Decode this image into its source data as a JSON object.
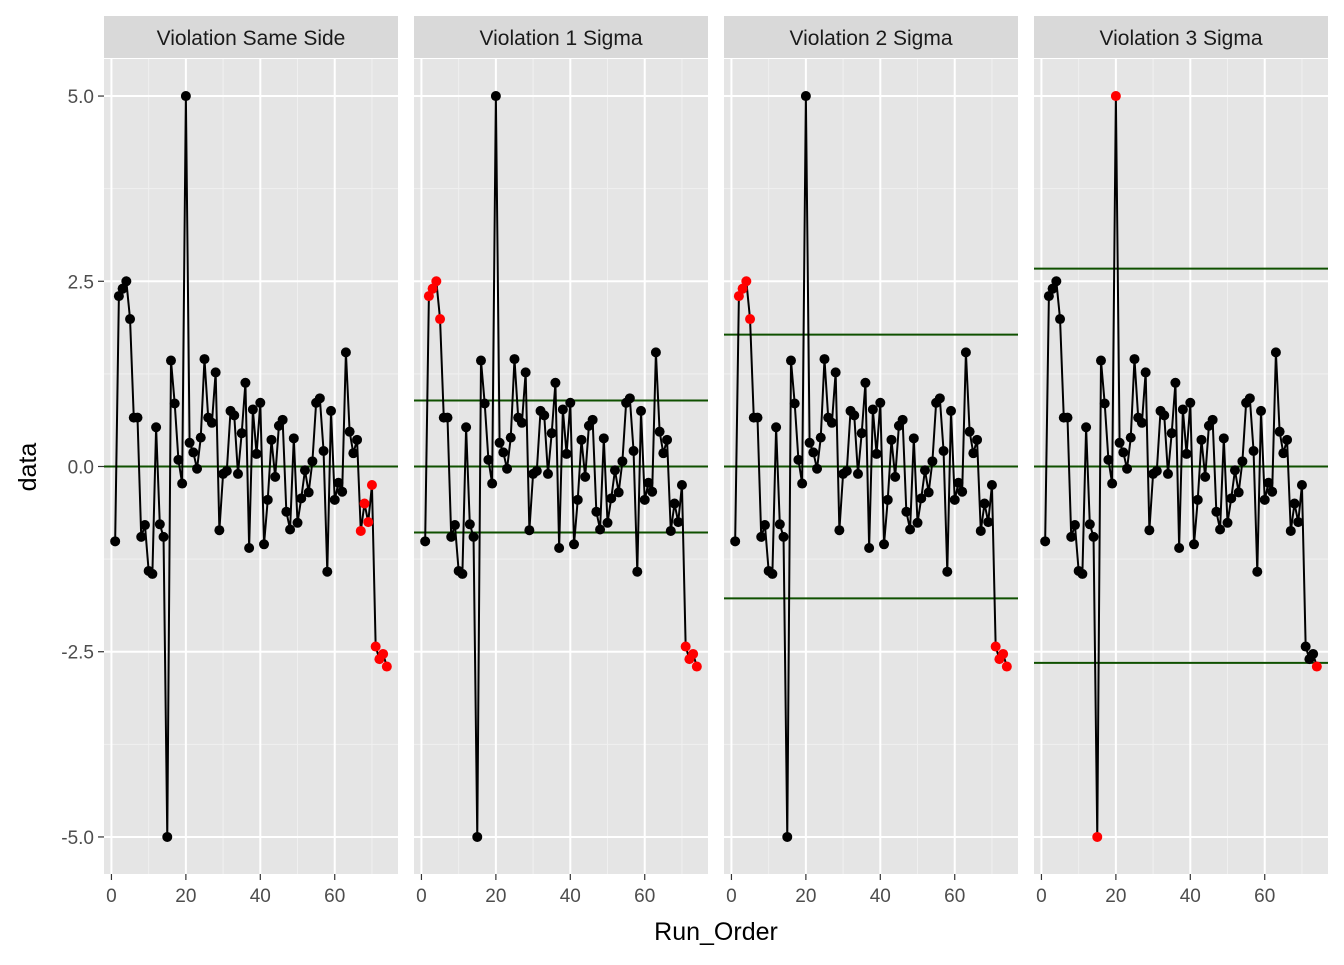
{
  "chart_data": {
    "type": "line",
    "xlabel": "Run_Order",
    "ylabel": "data",
    "xlim": [
      -2,
      77
    ],
    "ylim": [
      -5.5,
      5.5
    ],
    "x_ticks": [
      0,
      20,
      40,
      60
    ],
    "y_ticks": [
      5.0,
      2.5,
      0.0,
      -2.5,
      -5.0
    ],
    "y_tick_labels": [
      "5.0",
      "2.5",
      "0.0",
      "-2.5",
      "-5.0"
    ],
    "grid": true,
    "colors": {
      "panel_bg": "#e5e5e5",
      "strip_bg": "#d9d9d9",
      "grid_major": "#ffffff",
      "grid_minor": "#f0f0f0",
      "line": "#000000",
      "point_normal": "#000000",
      "point_violation": "#ff0000",
      "control_line": "#0f5000"
    },
    "x": [
      1,
      2,
      3,
      4,
      5,
      6,
      7,
      8,
      9,
      10,
      11,
      12,
      13,
      14,
      15,
      16,
      17,
      18,
      19,
      20,
      21,
      22,
      23,
      24,
      25,
      26,
      27,
      28,
      29,
      30,
      31,
      32,
      33,
      34,
      35,
      36,
      37,
      38,
      39,
      40,
      41,
      42,
      43,
      44,
      45,
      46,
      47,
      48,
      49,
      50,
      51,
      52,
      53,
      54,
      55,
      56,
      57,
      58,
      59,
      60,
      61,
      62,
      63,
      64,
      65,
      66,
      67,
      68,
      69,
      70,
      71,
      72,
      73,
      74
    ],
    "y": [
      -1.01,
      2.3,
      2.4,
      2.5,
      1.99,
      0.66,
      0.66,
      -0.95,
      -0.79,
      -1.41,
      -1.45,
      0.53,
      -0.78,
      -0.95,
      -5.0,
      1.43,
      0.85,
      0.09,
      -0.23,
      5.0,
      0.32,
      0.19,
      -0.03,
      0.39,
      1.45,
      0.66,
      0.59,
      1.27,
      -0.86,
      -0.1,
      -0.06,
      0.75,
      0.69,
      -0.1,
      0.45,
      1.13,
      -1.1,
      0.77,
      0.17,
      0.86,
      -1.05,
      -0.45,
      0.36,
      -0.14,
      0.55,
      0.63,
      -0.61,
      -0.85,
      0.38,
      -0.76,
      -0.43,
      -0.05,
      -0.35,
      0.07,
      0.86,
      0.92,
      0.21,
      -1.42,
      0.75,
      -0.45,
      -0.22,
      -0.34,
      1.54,
      0.47,
      0.18,
      0.36,
      -0.87,
      -0.5,
      -0.75,
      -0.25,
      -2.43,
      -2.6,
      -2.53,
      -2.7
    ],
    "panels": [
      {
        "title": "Violation Same Side",
        "control_lines": [
          0.0
        ],
        "violations": [
          67,
          68,
          69,
          70,
          71,
          72,
          73,
          74
        ]
      },
      {
        "title": "Violation 1 Sigma",
        "control_lines": [
          0.89,
          0.0,
          -0.89
        ],
        "violations": [
          2,
          3,
          4,
          5,
          71,
          72,
          73,
          74
        ]
      },
      {
        "title": "Violation 2 Sigma",
        "control_lines": [
          1.78,
          0.0,
          -1.78
        ],
        "violations": [
          2,
          3,
          4,
          5,
          71,
          72,
          73,
          74
        ]
      },
      {
        "title": "Violation 3 Sigma",
        "control_lines": [
          2.67,
          0.0,
          -2.65
        ],
        "violations": [
          15,
          20,
          74
        ]
      }
    ]
  }
}
